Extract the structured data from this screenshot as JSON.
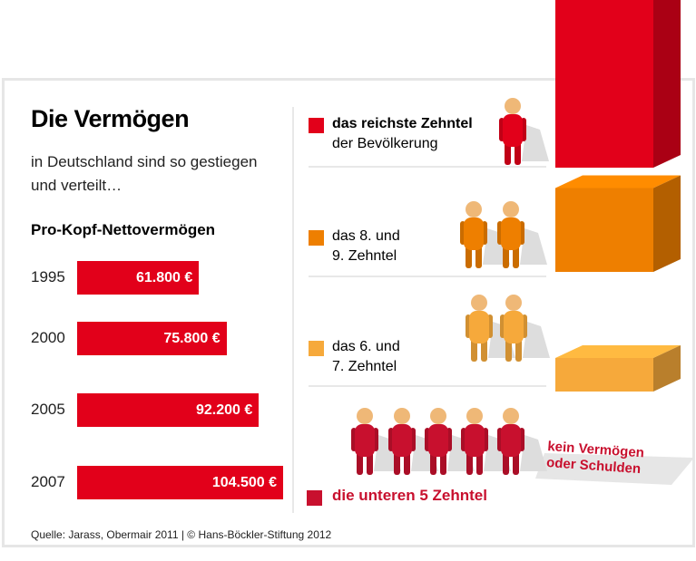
{
  "title": "Die Vermögen",
  "subtitle": "in Deutschland sind so gestiegen und verteilt…",
  "footer": "Quelle: Jarass, Obermair 2011 | © Hans-Böckler-Stiftung 2012",
  "chart_data": [
    {
      "type": "bar",
      "title": "Pro-Kopf-Nettovermögen",
      "orientation": "horizontal",
      "categories": [
        "1995",
        "2000",
        "2005",
        "2007"
      ],
      "values": [
        61800,
        75800,
        92200,
        104500
      ],
      "labels": [
        "61.800 €",
        "75.800 €",
        "92.200 €",
        "104.500 €"
      ],
      "color": "#e2001a"
    },
    {
      "type": "bar",
      "style": "3d-pictogram",
      "groups": [
        {
          "label_bold": "das reichste Zehntel",
          "label": "der Bevölkerung",
          "people": 1,
          "color": "#e2001a",
          "relative_share": 1.0
        },
        {
          "label": "das 8. und 9. Zehntel",
          "label_lines": [
            "das 8. und",
            "9. Zehntel"
          ],
          "people": 2,
          "color": "#ee7f00",
          "relative_share": 0.5
        },
        {
          "label": "das 6. und 7. Zehntel",
          "label_lines": [
            "das 6. und",
            "7. Zehntel"
          ],
          "people": 2,
          "color": "#f6a93b",
          "relative_share": 0.2
        },
        {
          "label_bold": "die unteren 5 Zehntel",
          "people": 5,
          "color": "#c8102e",
          "relative_share": 0,
          "annotation_lines": [
            "kein Vermögen",
            "oder Schulden"
          ]
        }
      ]
    }
  ]
}
